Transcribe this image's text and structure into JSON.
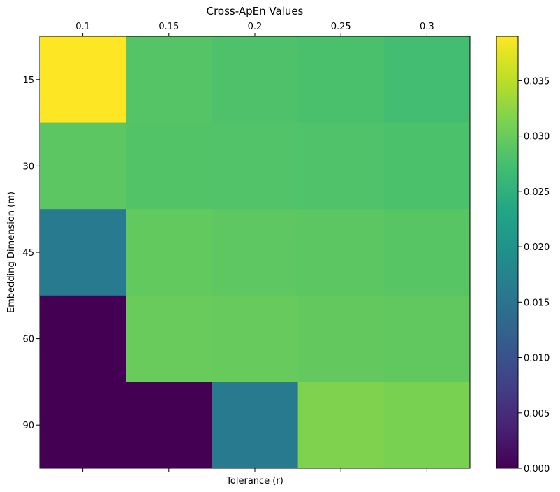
{
  "chart_data": {
    "type": "heatmap",
    "title": "Cross-ApEn Values",
    "xlabel": "Tolerance (r)",
    "ylabel": "Embedding Dimension (m)",
    "x_categories": [
      "0.1",
      "0.15",
      "0.2",
      "0.25",
      "0.3"
    ],
    "y_categories": [
      "15",
      "30",
      "45",
      "60",
      "90"
    ],
    "values": [
      [
        0.039,
        0.0285,
        0.028,
        0.0278,
        0.0272
      ],
      [
        0.029,
        0.0284,
        0.0283,
        0.0281,
        0.0279
      ],
      [
        0.016,
        0.0295,
        0.0292,
        0.029,
        0.0288
      ],
      [
        0.0,
        0.03,
        0.0298,
        0.0296,
        0.0294
      ],
      [
        0.0,
        0.0,
        0.016,
        0.0315,
        0.0312
      ]
    ],
    "colormap": "viridis",
    "vmin": 0.0,
    "vmax": 0.039,
    "x_axis_position": "top",
    "colorbar": {
      "ticks": [
        "0.000",
        "0.005",
        "0.010",
        "0.015",
        "0.020",
        "0.025",
        "0.030",
        "0.035"
      ]
    }
  }
}
